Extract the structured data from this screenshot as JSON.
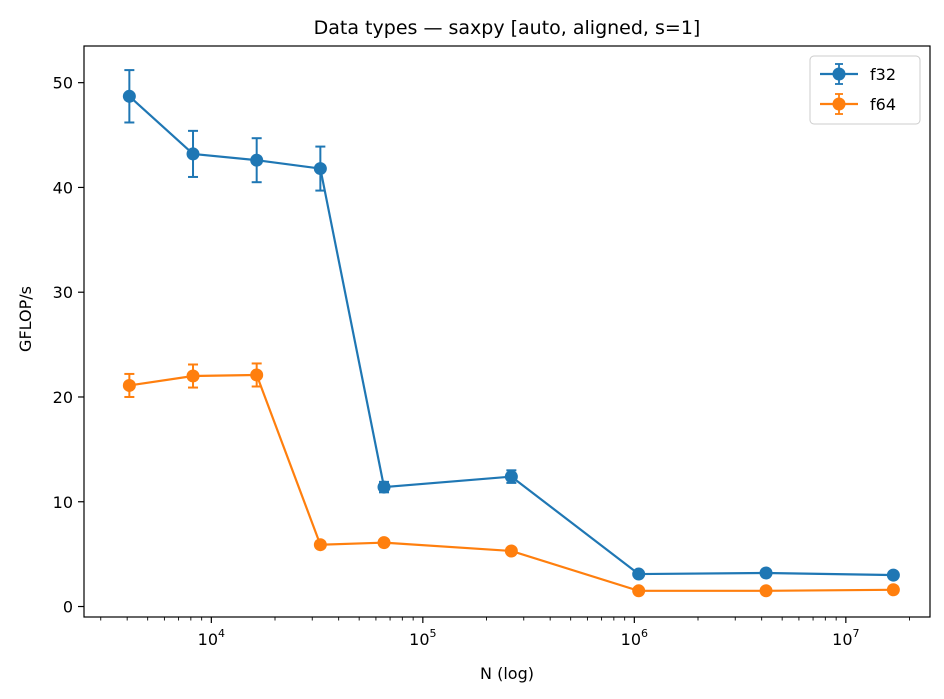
{
  "chart_data": {
    "type": "line",
    "title": "Data types — saxpy [auto, aligned, s=1]",
    "xlabel": "N (log)",
    "ylabel": "GFLOP/s",
    "xscale": "log",
    "xlim": [
      2500,
      25000000
    ],
    "ylim": [
      -1,
      53.5
    ],
    "yticks": [
      0,
      10,
      20,
      30,
      40,
      50
    ],
    "xticks": [
      {
        "value": 10000,
        "base": "10",
        "exp": "4"
      },
      {
        "value": 100000,
        "base": "10",
        "exp": "5"
      },
      {
        "value": 1000000,
        "base": "10",
        "exp": "6"
      },
      {
        "value": 10000000,
        "base": "10",
        "exp": "7"
      }
    ],
    "grid": false,
    "legend_position": "top-right",
    "series": [
      {
        "name": "f32",
        "color": "#1f77b4",
        "x": [
          4096,
          8192,
          16384,
          32768,
          65536,
          262144,
          1048576,
          4194304,
          16777216
        ],
        "y": [
          48.7,
          43.2,
          42.6,
          41.8,
          11.4,
          12.4,
          3.1,
          3.2,
          3.0
        ],
        "err": [
          2.5,
          2.2,
          2.1,
          2.1,
          0.5,
          0.6,
          0.2,
          0.2,
          0.2
        ]
      },
      {
        "name": "f64",
        "color": "#ff7f0e",
        "x": [
          4096,
          8192,
          16384,
          32768,
          65536,
          262144,
          1048576,
          4194304,
          16777216
        ],
        "y": [
          21.1,
          22.0,
          22.1,
          5.9,
          6.1,
          5.3,
          1.5,
          1.5,
          1.6
        ],
        "err": [
          1.1,
          1.1,
          1.1,
          0.2,
          0.2,
          0.2,
          0.1,
          0.1,
          0.1
        ]
      }
    ]
  }
}
